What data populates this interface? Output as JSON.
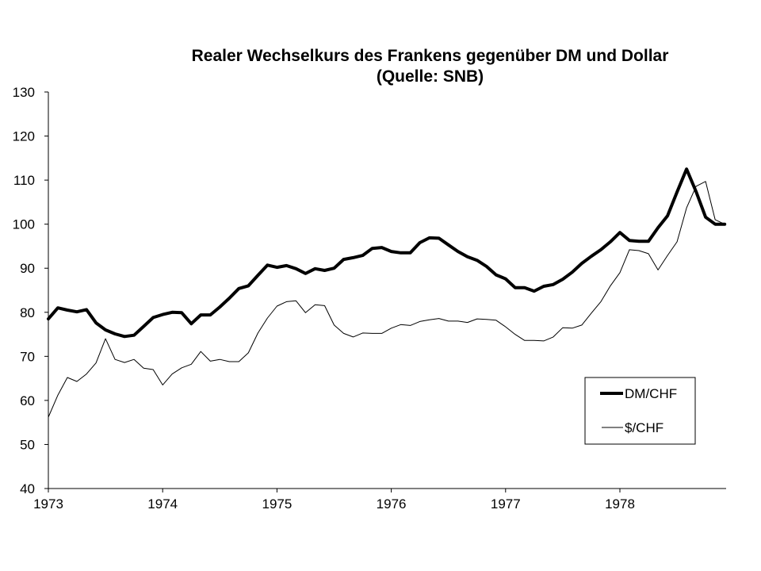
{
  "chart_data": {
    "type": "line",
    "title": "Realer Wechselkurs des Frankens gegenüber DM und Dollar",
    "subtitle": "(Quelle: SNB)",
    "xlabel": "",
    "ylabel": "",
    "ylim": [
      40,
      130
    ],
    "yticks": [
      40,
      50,
      60,
      70,
      80,
      90,
      100,
      110,
      120,
      130
    ],
    "xlim": [
      1973.0,
      1978.92
    ],
    "xticks": [
      "1973",
      "1974",
      "1975",
      "1976",
      "1977",
      "1978"
    ],
    "grid": false,
    "legend_position": "lower right (inside plot)",
    "frequency": "monthly",
    "x": [
      "1973-01",
      "1973-02",
      "1973-03",
      "1973-04",
      "1973-05",
      "1973-06",
      "1973-07",
      "1973-08",
      "1973-09",
      "1973-10",
      "1973-11",
      "1973-12",
      "1974-01",
      "1974-02",
      "1974-03",
      "1974-04",
      "1974-05",
      "1974-06",
      "1974-07",
      "1974-08",
      "1974-09",
      "1974-10",
      "1974-11",
      "1974-12",
      "1975-01",
      "1975-02",
      "1975-03",
      "1975-04",
      "1975-05",
      "1975-06",
      "1975-07",
      "1975-08",
      "1975-09",
      "1975-10",
      "1975-11",
      "1975-12",
      "1976-01",
      "1976-02",
      "1976-03",
      "1976-04",
      "1976-05",
      "1976-06",
      "1976-07",
      "1976-08",
      "1976-09",
      "1976-10",
      "1976-11",
      "1976-12",
      "1977-01",
      "1977-02",
      "1977-03",
      "1977-04",
      "1977-05",
      "1977-06",
      "1977-07",
      "1977-08",
      "1977-09",
      "1977-10",
      "1977-11",
      "1977-12",
      "1978-01",
      "1978-02",
      "1978-03",
      "1978-04",
      "1978-05",
      "1978-06",
      "1978-07",
      "1978-08",
      "1978-09",
      "1978-10",
      "1978-11",
      "1978-12"
    ],
    "series": [
      {
        "name": "DM/CHF",
        "line_width": 4,
        "color": "#000000",
        "values": [
          78.5,
          81.0,
          80.5,
          80.1,
          80.6,
          77.6,
          76.0,
          75.1,
          74.5,
          74.8,
          76.8,
          78.8,
          79.5,
          80.0,
          79.9,
          77.4,
          79.4,
          79.4,
          81.2,
          83.2,
          85.4,
          86.0,
          88.4,
          90.7,
          90.2,
          90.6,
          89.9,
          88.8,
          89.9,
          89.5,
          90.0,
          92.0,
          92.4,
          92.9,
          94.5,
          94.7,
          93.8,
          93.5,
          93.5,
          95.8,
          96.9,
          96.8,
          95.3,
          93.8,
          92.6,
          91.8,
          90.4,
          88.5,
          87.6,
          85.6,
          85.6,
          84.8,
          85.9,
          86.3,
          87.5,
          89.1,
          91.1,
          92.7,
          94.2,
          96.0,
          98.1,
          96.3,
          96.1,
          96.1,
          99.2,
          101.9,
          107.3,
          112.5,
          107.4,
          101.6,
          100.0,
          100.0
        ]
      },
      {
        "name": "$/CHF",
        "line_width": 1,
        "color": "#000000",
        "values": [
          56.2,
          61.2,
          65.2,
          64.3,
          66.0,
          68.5,
          74.0,
          69.3,
          68.6,
          69.3,
          67.3,
          67.0,
          63.5,
          66.0,
          67.4,
          68.2,
          71.1,
          68.9,
          69.3,
          68.8,
          68.8,
          70.8,
          75.3,
          78.7,
          81.4,
          82.4,
          82.6,
          79.9,
          81.7,
          81.5,
          77.1,
          75.2,
          74.4,
          75.3,
          75.2,
          75.2,
          76.4,
          77.2,
          77.0,
          77.9,
          78.3,
          78.6,
          78.0,
          78.0,
          77.7,
          78.5,
          78.4,
          78.2,
          76.7,
          75.0,
          73.6,
          73.6,
          73.5,
          74.4,
          76.5,
          76.4,
          77.1,
          79.8,
          82.4,
          86.0,
          89.0,
          94.2,
          94.0,
          93.3,
          89.6,
          92.9,
          96.0,
          103.7,
          108.6,
          109.7,
          101.0,
          100.0
        ]
      }
    ]
  },
  "header": {
    "title_line1": "Realer Wechselkurs des Frankens gegenüber DM und Dollar",
    "title_line2": "(Quelle: SNB)"
  },
  "axes": {
    "y_labels": [
      "130",
      "120",
      "110",
      "100",
      "90",
      "80",
      "70",
      "60",
      "50",
      "40"
    ],
    "x_labels": [
      "1973",
      "1974",
      "1975",
      "1976",
      "1977",
      "1978"
    ]
  },
  "legend": {
    "items": [
      {
        "label": "DM/CHF",
        "line": "thick"
      },
      {
        "label": "$/CHF",
        "line": "thin"
      }
    ]
  }
}
